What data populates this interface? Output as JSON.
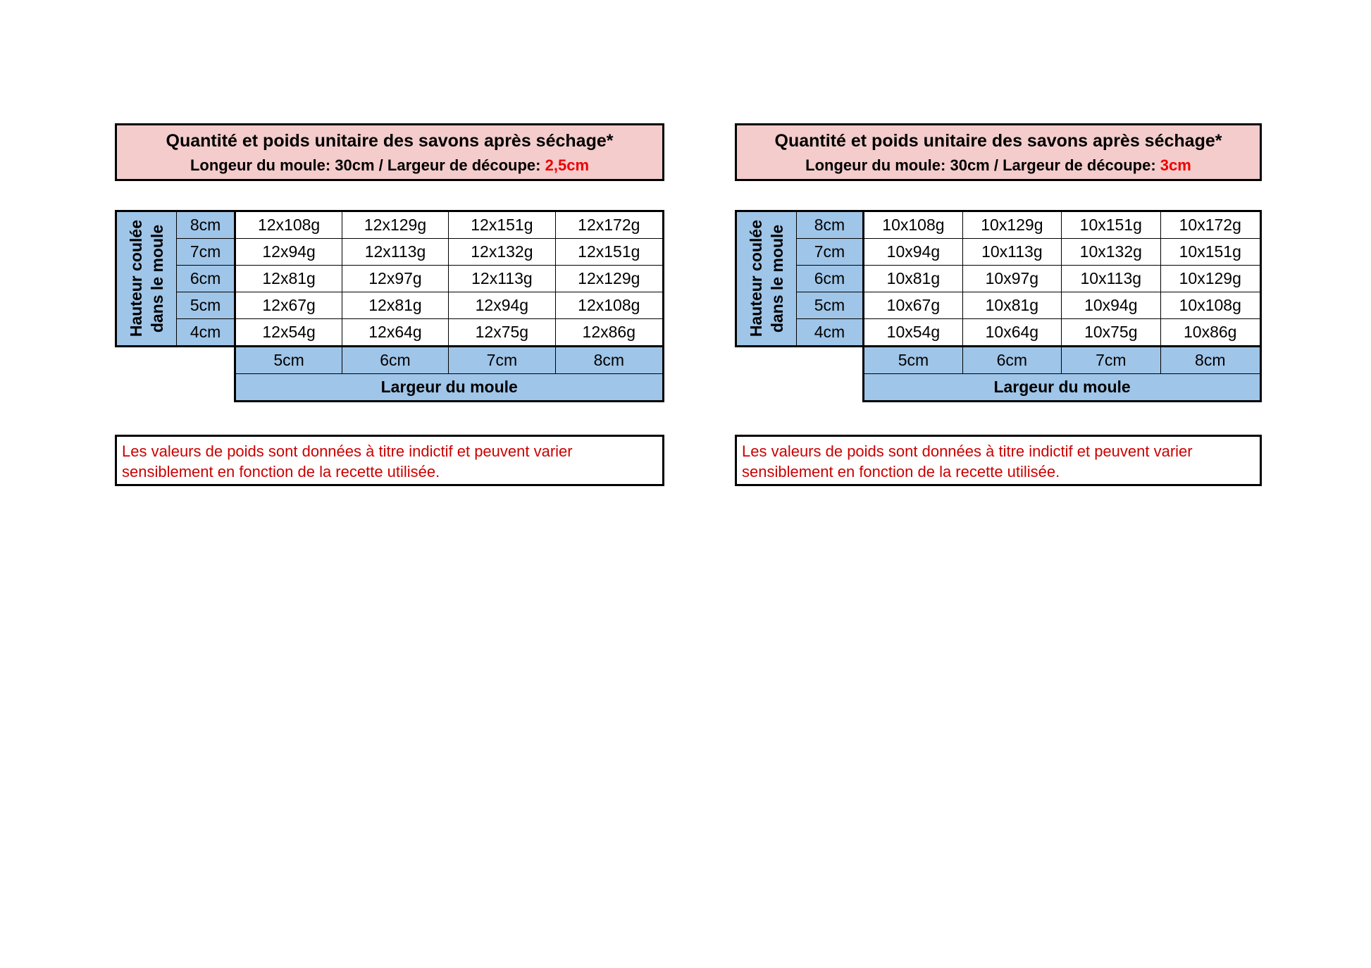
{
  "panels": [
    {
      "title": "Quantité et poids unitaire des savons après séchage*",
      "subtitle_prefix": "Longeur du moule: 30cm / Largeur de découpe: ",
      "subtitle_value": "2,5cm",
      "row_axis_label_1": "Hauteur coulée",
      "row_axis_label_2": "dans le moule",
      "row_labels": [
        "8cm",
        "7cm",
        "6cm",
        "5cm",
        "4cm"
      ],
      "col_labels": [
        "5cm",
        "6cm",
        "7cm",
        "8cm"
      ],
      "col_axis_label": "Largeur du moule",
      "cells": [
        [
          "12x108g",
          "12x129g",
          "12x151g",
          "12x172g"
        ],
        [
          "12x94g",
          "12x113g",
          "12x132g",
          "12x151g"
        ],
        [
          "12x81g",
          "12x97g",
          "12x113g",
          "12x129g"
        ],
        [
          "12x67g",
          "12x81g",
          "12x94g",
          "12x108g"
        ],
        [
          "12x54g",
          "12x64g",
          "12x75g",
          "12x86g"
        ]
      ],
      "note": "Les valeurs de poids sont données à titre indictif et peuvent varier sensiblement en fonction de la recette utilisée."
    },
    {
      "title": "Quantité et poids unitaire des savons après séchage*",
      "subtitle_prefix": "Longeur du moule: 30cm / Largeur de découpe: ",
      "subtitle_value": "3cm",
      "row_axis_label_1": "Hauteur coulée",
      "row_axis_label_2": "dans le moule",
      "row_labels": [
        "8cm",
        "7cm",
        "6cm",
        "5cm",
        "4cm"
      ],
      "col_labels": [
        "5cm",
        "6cm",
        "7cm",
        "8cm"
      ],
      "col_axis_label": "Largeur du moule",
      "cells": [
        [
          "10x108g",
          "10x129g",
          "10x151g",
          "10x172g"
        ],
        [
          "10x94g",
          "10x113g",
          "10x132g",
          "10x151g"
        ],
        [
          "10x81g",
          "10x97g",
          "10x113g",
          "10x129g"
        ],
        [
          "10x67g",
          "10x81g",
          "10x94g",
          "10x108g"
        ],
        [
          "10x54g",
          "10x64g",
          "10x75g",
          "10x86g"
        ]
      ],
      "note": "Les valeurs de poids sont données à titre indictif et peuvent varier sensiblement en fonction de la recette utilisée."
    }
  ],
  "colors": {
    "header_bg": "#f4cccc",
    "axis_bg": "#9fc5e8",
    "accent_red": "#ee0000",
    "note_text": "#cc0000"
  }
}
